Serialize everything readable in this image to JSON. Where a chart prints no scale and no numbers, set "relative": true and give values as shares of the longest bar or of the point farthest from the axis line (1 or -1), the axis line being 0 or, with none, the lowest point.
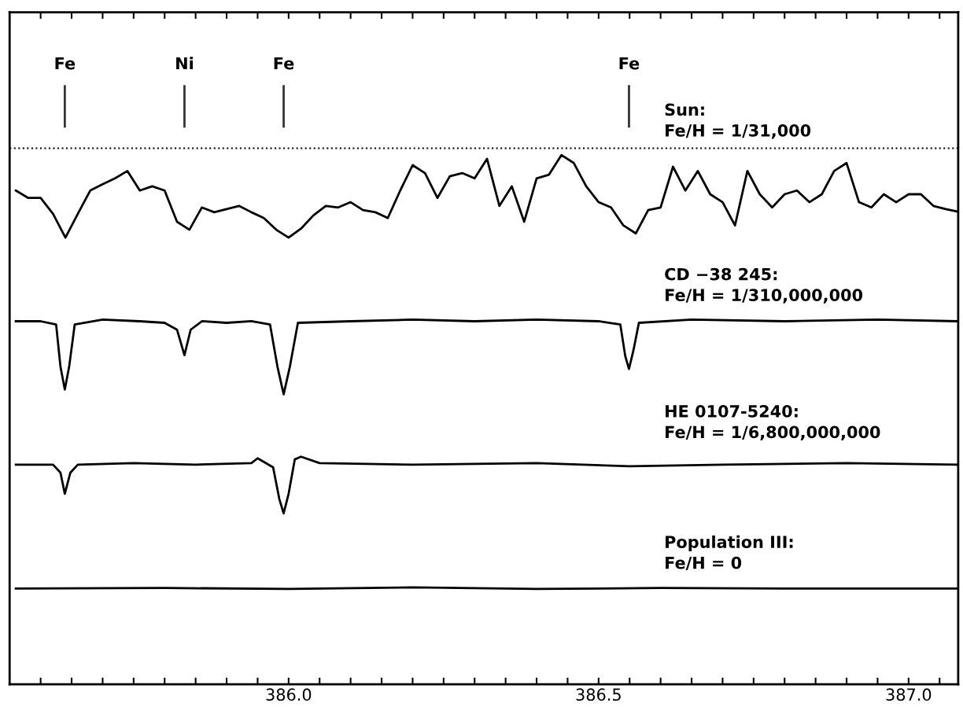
{
  "chart_data": {
    "type": "line",
    "relative": true,
    "line_style": "solid",
    "xlim": [
      385.55,
      387.08
    ],
    "xticks": [
      {
        "value": 385.6,
        "label": null
      },
      {
        "value": 385.65,
        "label": null
      },
      {
        "value": 385.7,
        "label": null
      },
      {
        "value": 385.75,
        "label": null
      },
      {
        "value": 385.8,
        "label": null
      },
      {
        "value": 385.85,
        "label": null
      },
      {
        "value": 385.9,
        "label": null
      },
      {
        "value": 385.95,
        "label": null
      },
      {
        "value": 386.0,
        "label": "386.0"
      },
      {
        "value": 386.05,
        "label": null
      },
      {
        "value": 386.1,
        "label": null
      },
      {
        "value": 386.15,
        "label": null
      },
      {
        "value": 386.2,
        "label": null
      },
      {
        "value": 386.25,
        "label": null
      },
      {
        "value": 386.3,
        "label": null
      },
      {
        "value": 386.35,
        "label": null
      },
      {
        "value": 386.4,
        "label": null
      },
      {
        "value": 386.45,
        "label": null
      },
      {
        "value": 386.5,
        "label": "386.5"
      },
      {
        "value": 386.55,
        "label": null
      },
      {
        "value": 386.6,
        "label": null
      },
      {
        "value": 386.65,
        "label": null
      },
      {
        "value": 386.7,
        "label": null
      },
      {
        "value": 386.75,
        "label": null
      },
      {
        "value": 386.8,
        "label": null
      },
      {
        "value": 386.85,
        "label": null
      },
      {
        "value": 386.9,
        "label": null
      },
      {
        "value": 386.95,
        "label": null
      },
      {
        "value": 387.0,
        "label": "387.0"
      },
      {
        "value": 387.05,
        "label": null
      }
    ],
    "series": [
      {
        "name": "Sun:\nFe/H = 1/31,000",
        "color": "#000000",
        "x": [
          385.56,
          385.58,
          385.6,
          385.62,
          385.64,
          385.66,
          385.68,
          385.7,
          385.72,
          385.74,
          385.76,
          385.78,
          385.8,
          385.82,
          385.84,
          385.86,
          385.88,
          385.9,
          385.92,
          385.94,
          385.96,
          385.98,
          386.0,
          386.02,
          386.04,
          386.06,
          386.08,
          386.1,
          386.12,
          386.14,
          386.16,
          386.18,
          386.2,
          386.22,
          386.24,
          386.26,
          386.28,
          386.3,
          386.32,
          386.34,
          386.36,
          386.38,
          386.4,
          386.42,
          386.44,
          386.46,
          386.48,
          386.5,
          386.52,
          386.54,
          386.56,
          386.58,
          386.6,
          386.62,
          386.64,
          386.66,
          386.68,
          386.7,
          386.72,
          386.74,
          386.76,
          386.78,
          386.8,
          386.82,
          386.84,
          386.86,
          386.88,
          386.9,
          386.92,
          386.94,
          386.96,
          386.98,
          387.0,
          387.02,
          387.04,
          387.06,
          387.08
        ],
        "values": [
          0.933,
          0.919,
          0.919,
          0.889,
          0.844,
          0.889,
          0.933,
          0.945,
          0.956,
          0.97,
          0.933,
          0.941,
          0.933,
          0.874,
          0.859,
          0.901,
          0.892,
          0.898,
          0.904,
          0.892,
          0.881,
          0.859,
          0.844,
          0.861,
          0.886,
          0.904,
          0.901,
          0.911,
          0.896,
          0.892,
          0.881,
          0.933,
          0.981,
          0.966,
          0.919,
          0.96,
          0.966,
          0.956,
          0.993,
          0.904,
          0.941,
          0.874,
          0.956,
          0.963,
          1.0,
          0.985,
          0.941,
          0.911,
          0.901,
          0.867,
          0.852,
          0.896,
          0.901,
          0.978,
          0.933,
          0.97,
          0.926,
          0.911,
          0.867,
          0.97,
          0.926,
          0.901,
          0.926,
          0.933,
          0.911,
          0.926,
          0.97,
          0.985,
          0.911,
          0.901,
          0.926,
          0.911,
          0.926,
          0.926,
          0.904,
          0.898,
          0.893
        ]
      },
      {
        "name": "CD −38 245:\nFe/H = 1/310,000,000",
        "color": "#000000",
        "x": [
          385.56,
          385.6,
          385.625,
          385.632,
          385.639,
          385.646,
          385.655,
          385.7,
          385.76,
          385.8,
          385.82,
          385.832,
          385.842,
          385.86,
          385.9,
          385.94,
          385.97,
          385.982,
          385.992,
          386.002,
          386.015,
          386.1,
          386.2,
          386.3,
          386.4,
          386.5,
          386.535,
          386.543,
          386.549,
          386.556,
          386.565,
          386.65,
          386.8,
          386.95,
          387.08
        ],
        "values": [
          0.686,
          0.686,
          0.68,
          0.6,
          0.557,
          0.6,
          0.68,
          0.689,
          0.686,
          0.683,
          0.67,
          0.622,
          0.67,
          0.686,
          0.683,
          0.686,
          0.68,
          0.6,
          0.548,
          0.6,
          0.683,
          0.686,
          0.689,
          0.686,
          0.689,
          0.686,
          0.68,
          0.62,
          0.596,
          0.63,
          0.683,
          0.689,
          0.686,
          0.689,
          0.686
        ]
      },
      {
        "name": "HE 0107-5240:\nFe/H = 1/6,800,000,000",
        "color": "#000000",
        "x": [
          385.56,
          385.62,
          385.632,
          385.639,
          385.648,
          385.66,
          385.75,
          385.85,
          385.94,
          385.95,
          385.975,
          385.985,
          385.992,
          386.0,
          386.01,
          386.02,
          386.05,
          386.2,
          386.4,
          386.55,
          386.7,
          386.9,
          387.08
        ],
        "values": [
          0.415,
          0.415,
          0.4,
          0.36,
          0.4,
          0.415,
          0.418,
          0.415,
          0.418,
          0.427,
          0.41,
          0.35,
          0.323,
          0.36,
          0.425,
          0.43,
          0.418,
          0.415,
          0.418,
          0.412,
          0.415,
          0.418,
          0.415
        ]
      },
      {
        "name": "Population III:\nFe/H = 0",
        "color": "#000000",
        "x": [
          385.56,
          385.8,
          386.0,
          386.2,
          386.4,
          386.6,
          386.8,
          387.08
        ],
        "values": [
          0.181,
          0.182,
          0.18,
          0.183,
          0.18,
          0.182,
          0.181,
          0.181
        ]
      }
    ],
    "ref_lines": [
      {
        "axis": "y",
        "value": 1.013,
        "line_style": "dotted",
        "color": "#000000"
      },
      {
        "axis": "x",
        "value": 385.639,
        "label": "Fe",
        "color": "#333333"
      },
      {
        "axis": "x",
        "value": 385.832,
        "label": "Ni",
        "color": "#333333"
      },
      {
        "axis": "x",
        "value": 385.992,
        "label": "Fe",
        "color": "#333333"
      },
      {
        "axis": "x",
        "value": 386.549,
        "label": "Fe",
        "color": "#333333"
      }
    ]
  }
}
